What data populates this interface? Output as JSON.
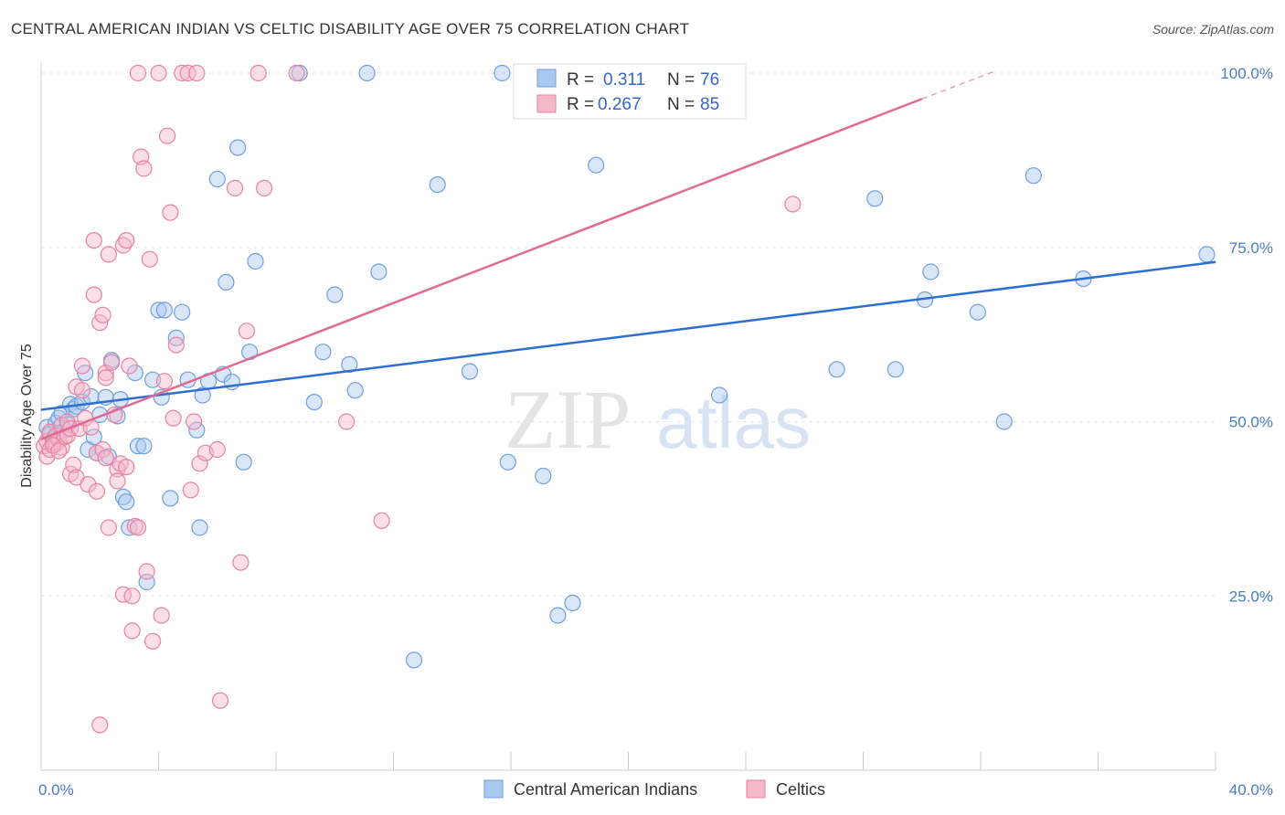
{
  "header": {
    "title": "CENTRAL AMERICAN INDIAN VS CELTIC DISABILITY AGE OVER 75 CORRELATION CHART",
    "source": "Source: ZipAtlas.com"
  },
  "watermark": {
    "zip": "ZIP",
    "atlas": "atlas"
  },
  "legend_top": {
    "r_label": "R =",
    "n_label": "N =",
    "rows": [
      {
        "r": "0.311",
        "n": "76",
        "color": "#a9c8f0"
      },
      {
        "r": "0.267",
        "n": "85",
        "color": "#f5b8cb"
      }
    ]
  },
  "chart_data": {
    "type": "scatter",
    "title": "CENTRAL AMERICAN INDIAN VS CELTIC DISABILITY AGE OVER 75 CORRELATION CHART",
    "xlabel": "",
    "ylabel": "Disability Age Over 75",
    "xlim": [
      0,
      40
    ],
    "ylim": [
      0,
      100
    ],
    "x_ticks": [
      {
        "v": 0,
        "label": "0.0%"
      },
      {
        "v": 40,
        "label": "40.0%"
      }
    ],
    "y_ticks": [
      {
        "v": 25,
        "label": "25.0%"
      },
      {
        "v": 50,
        "label": "50.0%"
      },
      {
        "v": 75,
        "label": "75.0%"
      },
      {
        "v": 100,
        "label": "100.0%"
      }
    ],
    "grid": true,
    "legend_placement": "top-center",
    "series": [
      {
        "name": "Central American Indians",
        "color": "#6f9fde",
        "fill": "#a9c8f0",
        "r": 0.311,
        "n": 76,
        "trend": {
          "x0": 0,
          "y0": 51.7,
          "x1": 40,
          "y1": 72.9
        },
        "points": [
          [
            0.2,
            49.2
          ],
          [
            0.3,
            48.2
          ],
          [
            0.4,
            47.5
          ],
          [
            0.5,
            49.8
          ],
          [
            0.6,
            50.5
          ],
          [
            0.7,
            51.2
          ],
          [
            0.8,
            48.8
          ],
          [
            0.9,
            49.6
          ],
          [
            1.0,
            52.5
          ],
          [
            1.1,
            51.8
          ],
          [
            1.2,
            52.2
          ],
          [
            1.4,
            52.8
          ],
          [
            1.5,
            57.0
          ],
          [
            1.6,
            46.0
          ],
          [
            1.7,
            53.6
          ],
          [
            1.8,
            47.8
          ],
          [
            1.9,
            45.5
          ],
          [
            2.0,
            51.0
          ],
          [
            2.2,
            53.5
          ],
          [
            2.3,
            45.0
          ],
          [
            2.4,
            58.8
          ],
          [
            2.6,
            50.8
          ],
          [
            2.7,
            53.2
          ],
          [
            2.8,
            39.2
          ],
          [
            2.9,
            38.5
          ],
          [
            3.0,
            34.8
          ],
          [
            3.2,
            57.0
          ],
          [
            3.3,
            46.5
          ],
          [
            3.5,
            46.5
          ],
          [
            3.6,
            27.0
          ],
          [
            3.8,
            56.0
          ],
          [
            4.0,
            66.0
          ],
          [
            4.1,
            53.5
          ],
          [
            4.2,
            66.0
          ],
          [
            4.4,
            39.0
          ],
          [
            4.6,
            62.0
          ],
          [
            4.8,
            65.7
          ],
          [
            5.0,
            56.0
          ],
          [
            5.3,
            48.8
          ],
          [
            5.5,
            53.8
          ],
          [
            5.4,
            34.8
          ],
          [
            5.7,
            55.8
          ],
          [
            6.0,
            84.8
          ],
          [
            6.2,
            56.8
          ],
          [
            6.3,
            70.0
          ],
          [
            6.5,
            55.7
          ],
          [
            6.7,
            89.3
          ],
          [
            6.9,
            44.2
          ],
          [
            7.1,
            60.0
          ],
          [
            7.3,
            73.0
          ],
          [
            8.8,
            100.0
          ],
          [
            9.3,
            52.8
          ],
          [
            9.6,
            60.0
          ],
          [
            10.0,
            68.2
          ],
          [
            10.5,
            58.2
          ],
          [
            10.7,
            54.5
          ],
          [
            11.1,
            100.0
          ],
          [
            11.5,
            71.5
          ],
          [
            13.5,
            84.0
          ],
          [
            14.6,
            57.2
          ],
          [
            15.7,
            100.0
          ],
          [
            15.9,
            44.2
          ],
          [
            17.1,
            42.2
          ],
          [
            17.6,
            22.2
          ],
          [
            18.1,
            24.0
          ],
          [
            18.9,
            86.8
          ],
          [
            12.7,
            15.8
          ],
          [
            23.1,
            53.8
          ],
          [
            27.1,
            57.5
          ],
          [
            28.4,
            82.0
          ],
          [
            29.1,
            57.5
          ],
          [
            30.1,
            67.5
          ],
          [
            30.3,
            71.5
          ],
          [
            31.9,
            65.7
          ],
          [
            32.8,
            50.0
          ],
          [
            33.8,
            85.3
          ],
          [
            35.5,
            70.5
          ],
          [
            39.7,
            74.0
          ]
        ]
      },
      {
        "name": "Celtics",
        "color": "#e8819f",
        "fill": "#f5b8cb",
        "r": 0.267,
        "n": 85,
        "trend": {
          "x0": 0,
          "y0": 47.5,
          "x1": 30,
          "y1": 96.3
        },
        "trend_dashed": {
          "x0": 30,
          "y0": 96.3,
          "x1": 32.5,
          "y1": 100.3
        },
        "points": [
          [
            0.1,
            46.5
          ],
          [
            0.2,
            45.0
          ],
          [
            0.2,
            47.2
          ],
          [
            0.3,
            46.0
          ],
          [
            0.3,
            48.5
          ],
          [
            0.4,
            47.0
          ],
          [
            0.5,
            46.8
          ],
          [
            0.5,
            48.0
          ],
          [
            0.6,
            47.5
          ],
          [
            0.7,
            46.3
          ],
          [
            0.7,
            49.5
          ],
          [
            0.8,
            47.8
          ],
          [
            0.9,
            48.0
          ],
          [
            0.9,
            50.0
          ],
          [
            1.0,
            49.0
          ],
          [
            1.0,
            42.5
          ],
          [
            1.1,
            43.8
          ],
          [
            1.2,
            55.0
          ],
          [
            1.2,
            42.0
          ],
          [
            1.3,
            49.0
          ],
          [
            1.4,
            54.5
          ],
          [
            1.4,
            58.0
          ],
          [
            1.5,
            50.5
          ],
          [
            1.6,
            41.0
          ],
          [
            1.7,
            49.2
          ],
          [
            1.8,
            76.0
          ],
          [
            1.8,
            68.2
          ],
          [
            1.9,
            40.0
          ],
          [
            1.9,
            45.5
          ],
          [
            2.0,
            64.2
          ],
          [
            2.1,
            65.3
          ],
          [
            2.1,
            46.0
          ],
          [
            2.2,
            57.0
          ],
          [
            2.2,
            56.3
          ],
          [
            2.2,
            44.8
          ],
          [
            2.3,
            74.0
          ],
          [
            2.3,
            34.8
          ],
          [
            2.4,
            58.5
          ],
          [
            2.5,
            51.0
          ],
          [
            2.6,
            43.2
          ],
          [
            2.6,
            41.5
          ],
          [
            2.7,
            44.0
          ],
          [
            2.8,
            75.3
          ],
          [
            2.8,
            25.2
          ],
          [
            2.9,
            76.0
          ],
          [
            2.9,
            43.5
          ],
          [
            3.0,
            58.0
          ],
          [
            3.1,
            20.0
          ],
          [
            3.1,
            25.0
          ],
          [
            3.2,
            35.0
          ],
          [
            3.3,
            100.0
          ],
          [
            3.3,
            34.8
          ],
          [
            3.4,
            88.0
          ],
          [
            3.5,
            86.3
          ],
          [
            3.6,
            28.5
          ],
          [
            3.7,
            73.3
          ],
          [
            3.8,
            18.5
          ],
          [
            4.0,
            100.0
          ],
          [
            4.1,
            22.2
          ],
          [
            4.2,
            55.8
          ],
          [
            4.3,
            91.0
          ],
          [
            4.4,
            80.0
          ],
          [
            4.5,
            50.5
          ],
          [
            4.6,
            61.0
          ],
          [
            4.8,
            100.0
          ],
          [
            5.0,
            100.0
          ],
          [
            5.1,
            40.2
          ],
          [
            5.2,
            50.0
          ],
          [
            5.3,
            100.0
          ],
          [
            5.4,
            44.0
          ],
          [
            5.6,
            45.5
          ],
          [
            6.0,
            46.0
          ],
          [
            6.1,
            10.0
          ],
          [
            6.6,
            83.5
          ],
          [
            6.8,
            29.8
          ],
          [
            7.0,
            63.0
          ],
          [
            7.4,
            100.0
          ],
          [
            7.6,
            83.5
          ],
          [
            8.7,
            100.0
          ],
          [
            10.4,
            50.0
          ],
          [
            11.6,
            35.8
          ],
          [
            2.0,
            6.5
          ],
          [
            25.6,
            81.2
          ],
          [
            0.4,
            46.6
          ],
          [
            0.6,
            45.8
          ]
        ]
      }
    ]
  }
}
